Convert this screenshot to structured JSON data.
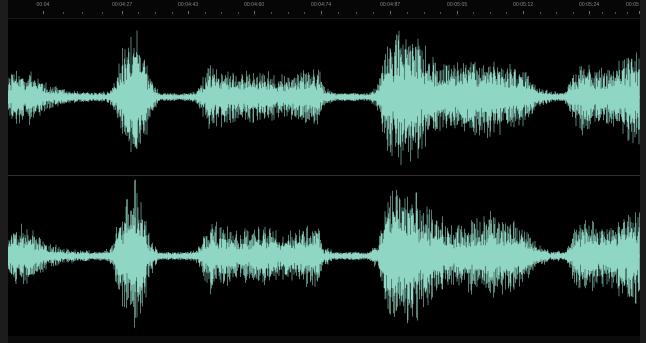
{
  "ruler": {
    "labels": [
      {
        "text": "00:04",
        "t": 0.055
      },
      {
        "text": "00:04:27",
        "t": 0.18
      },
      {
        "text": "00:04:43",
        "t": 0.285
      },
      {
        "text": "00:04:60",
        "t": 0.39
      },
      {
        "text": "00:04:74",
        "t": 0.495
      },
      {
        "text": "00:04:87",
        "t": 0.605
      },
      {
        "text": "00:05:05",
        "t": 0.71
      },
      {
        "text": "00:05:12",
        "t": 0.815
      },
      {
        "text": "00:05:24",
        "t": 0.92
      },
      {
        "text": "00:05",
        "t": 1.0
      }
    ]
  },
  "waveform": {
    "color": "#8fd6c4",
    "background": "#000000",
    "channels": [
      "left",
      "right"
    ],
    "envelope": [
      [
        0.0,
        0.3
      ],
      [
        0.02,
        0.42
      ],
      [
        0.04,
        0.35
      ],
      [
        0.06,
        0.2
      ],
      [
        0.09,
        0.1
      ],
      [
        0.12,
        0.08
      ],
      [
        0.14,
        0.06
      ],
      [
        0.16,
        0.1
      ],
      [
        0.175,
        0.45
      ],
      [
        0.19,
        0.95
      ],
      [
        0.205,
        1.0
      ],
      [
        0.215,
        0.7
      ],
      [
        0.225,
        0.3
      ],
      [
        0.24,
        0.05
      ],
      [
        0.27,
        0.04
      ],
      [
        0.3,
        0.1
      ],
      [
        0.32,
        0.5
      ],
      [
        0.34,
        0.42
      ],
      [
        0.37,
        0.35
      ],
      [
        0.4,
        0.4
      ],
      [
        0.43,
        0.32
      ],
      [
        0.46,
        0.38
      ],
      [
        0.49,
        0.45
      ],
      [
        0.5,
        0.15
      ],
      [
        0.52,
        0.05
      ],
      [
        0.55,
        0.06
      ],
      [
        0.57,
        0.04
      ],
      [
        0.585,
        0.2
      ],
      [
        0.6,
        0.8
      ],
      [
        0.62,
        1.0
      ],
      [
        0.64,
        0.95
      ],
      [
        0.66,
        0.75
      ],
      [
        0.68,
        0.55
      ],
      [
        0.7,
        0.45
      ],
      [
        0.72,
        0.5
      ],
      [
        0.74,
        0.55
      ],
      [
        0.76,
        0.6
      ],
      [
        0.78,
        0.5
      ],
      [
        0.8,
        0.48
      ],
      [
        0.82,
        0.4
      ],
      [
        0.84,
        0.15
      ],
      [
        0.86,
        0.08
      ],
      [
        0.88,
        0.06
      ],
      [
        0.895,
        0.35
      ],
      [
        0.91,
        0.55
      ],
      [
        0.93,
        0.45
      ],
      [
        0.95,
        0.4
      ],
      [
        0.97,
        0.55
      ],
      [
        0.99,
        0.7
      ],
      [
        1.0,
        0.65
      ]
    ]
  }
}
